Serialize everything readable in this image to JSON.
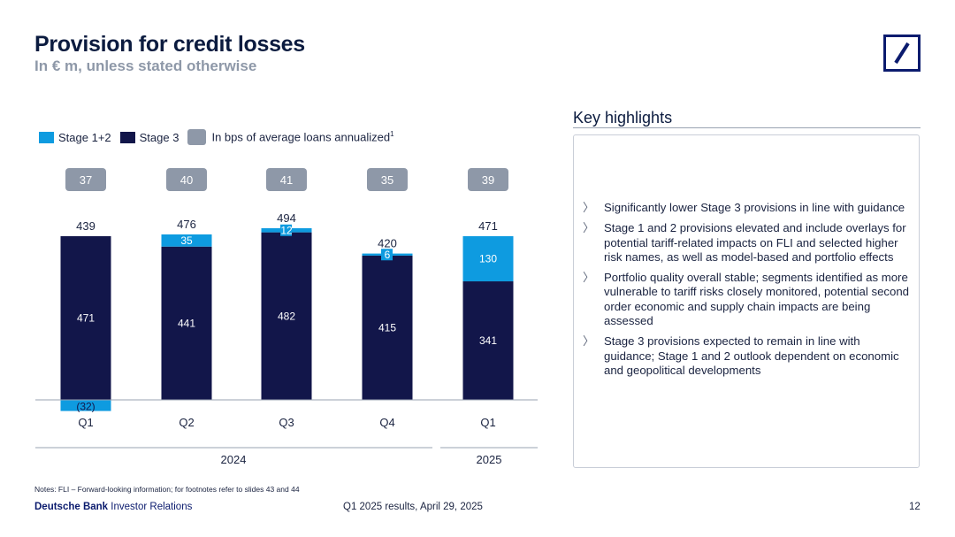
{
  "header": {
    "title": "Provision for credit losses",
    "subtitle": "In € m, unless stated otherwise"
  },
  "colors": {
    "stage12": "#0e9be0",
    "stage3": "#12164a",
    "bps": "#8e98a8",
    "axis": "#9aa3b2"
  },
  "legend": {
    "stage12": "Stage 1+2",
    "stage3": "Stage 3",
    "bps": "In bps of average loans annualized",
    "bps_footnote": "1"
  },
  "chart_data": {
    "type": "bar",
    "stacked": true,
    "categories": [
      "Q1",
      "Q2",
      "Q3",
      "Q4",
      "Q1"
    ],
    "year_groups": [
      {
        "label": "2024",
        "categories": [
          "Q1",
          "Q2",
          "Q3",
          "Q4"
        ]
      },
      {
        "label": "2025",
        "categories": [
          "Q1"
        ]
      }
    ],
    "series": [
      {
        "name": "Stage 3",
        "values": [
          471,
          441,
          482,
          415,
          341
        ],
        "labels": [
          "471",
          "441",
          "482",
          "415",
          "341"
        ]
      },
      {
        "name": "Stage 1+2",
        "values": [
          -32,
          35,
          12,
          6,
          130
        ],
        "labels": [
          "(32)",
          "35",
          "12",
          "6",
          "130"
        ]
      }
    ],
    "totals": [
      439,
      476,
      494,
      420,
      471
    ],
    "bps": [
      37,
      40,
      41,
      35,
      39
    ],
    "ylim": [
      -32,
      494
    ]
  },
  "highlights": {
    "title": "Key highlights",
    "bullet_marker": "〉",
    "items": [
      "Significantly lower Stage 3 provisions in line with guidance",
      "Stage 1 and 2 provisions elevated and include overlays for potential tariff-related impacts on FLI and selected higher risk names, as well as model-based and portfolio effects",
      "Portfolio quality overall stable; segments identified as more vulnerable to tariff risks closely monitored, potential second order economic and supply chain impacts are being assessed",
      "Stage 3 provisions expected to remain in line with guidance; Stage 1 and 2 outlook dependent on economic and geopolitical developments"
    ]
  },
  "footer": {
    "notes": "Notes: FLI – Forward-looking information; for footnotes refer to slides 43 and 44",
    "brand_bold": "Deutsche Bank",
    "brand_rest": " Investor Relations",
    "event": "Q1 2025 results, April 29, 2025",
    "page": "12"
  }
}
